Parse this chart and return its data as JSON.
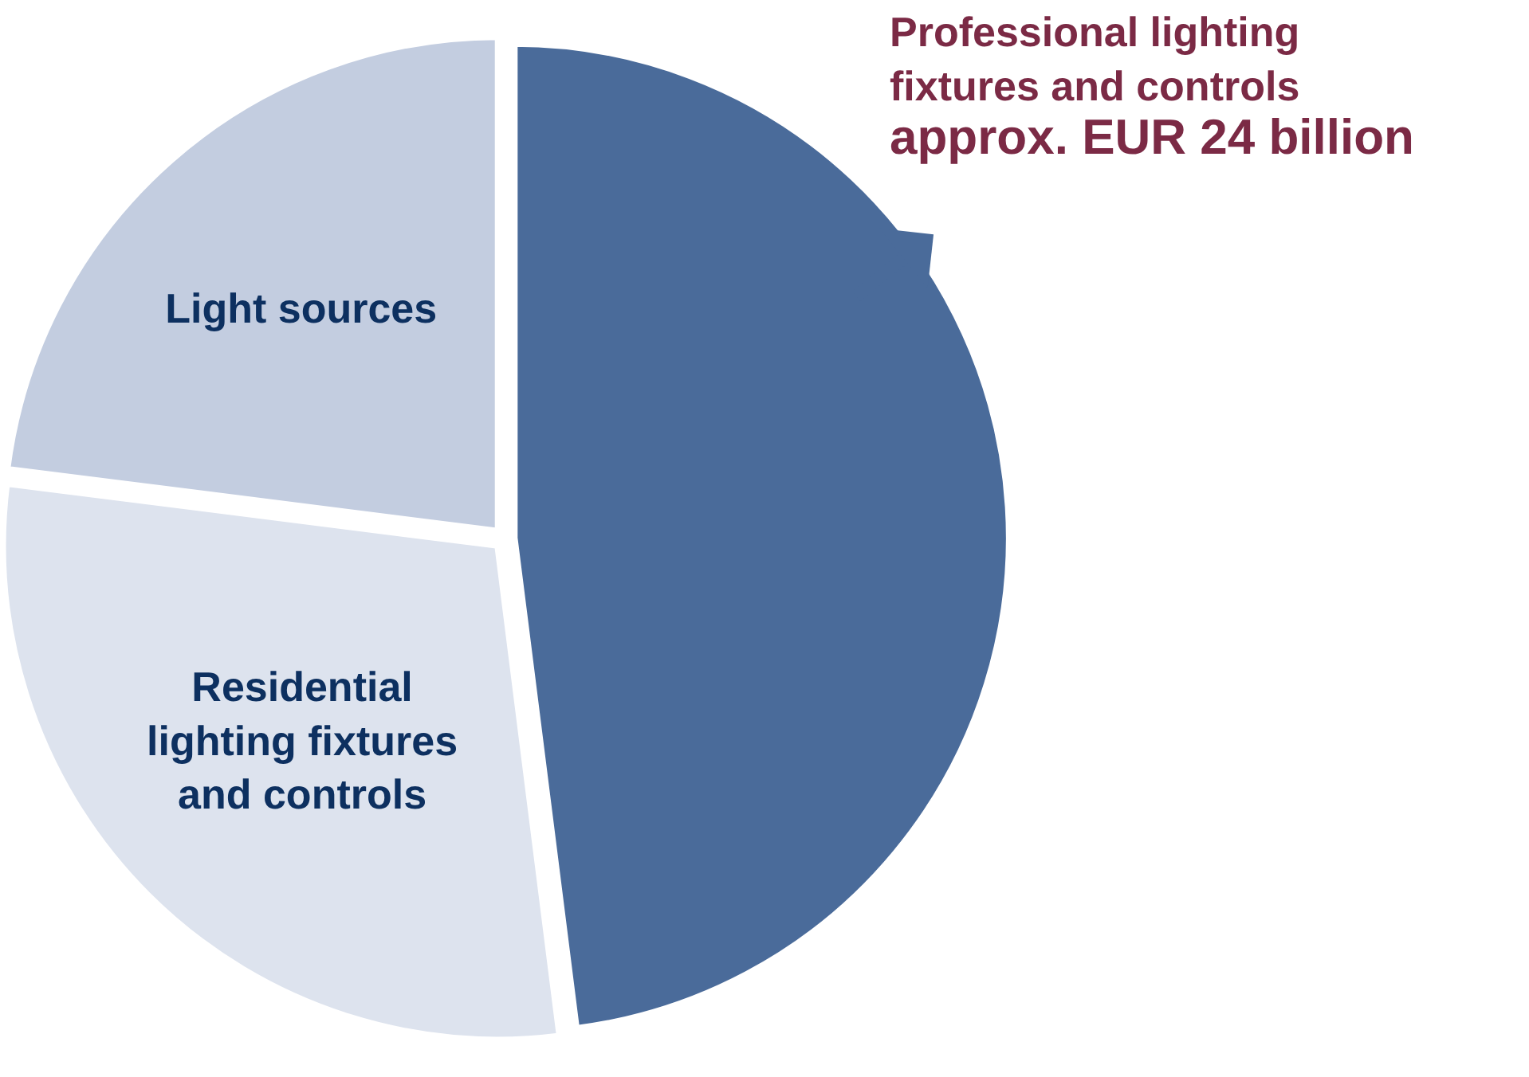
{
  "chart_data": {
    "type": "pie",
    "categories": [
      "Professional lighting fixtures and controls",
      "Residential lighting fixtures and controls",
      "Light sources"
    ],
    "values": [
      48,
      29,
      23
    ],
    "colors": [
      "#4a6b9a",
      "#dde3ee",
      "#c3cde0"
    ],
    "annotations": [
      "approx. EUR 24 billion"
    ]
  }
}
